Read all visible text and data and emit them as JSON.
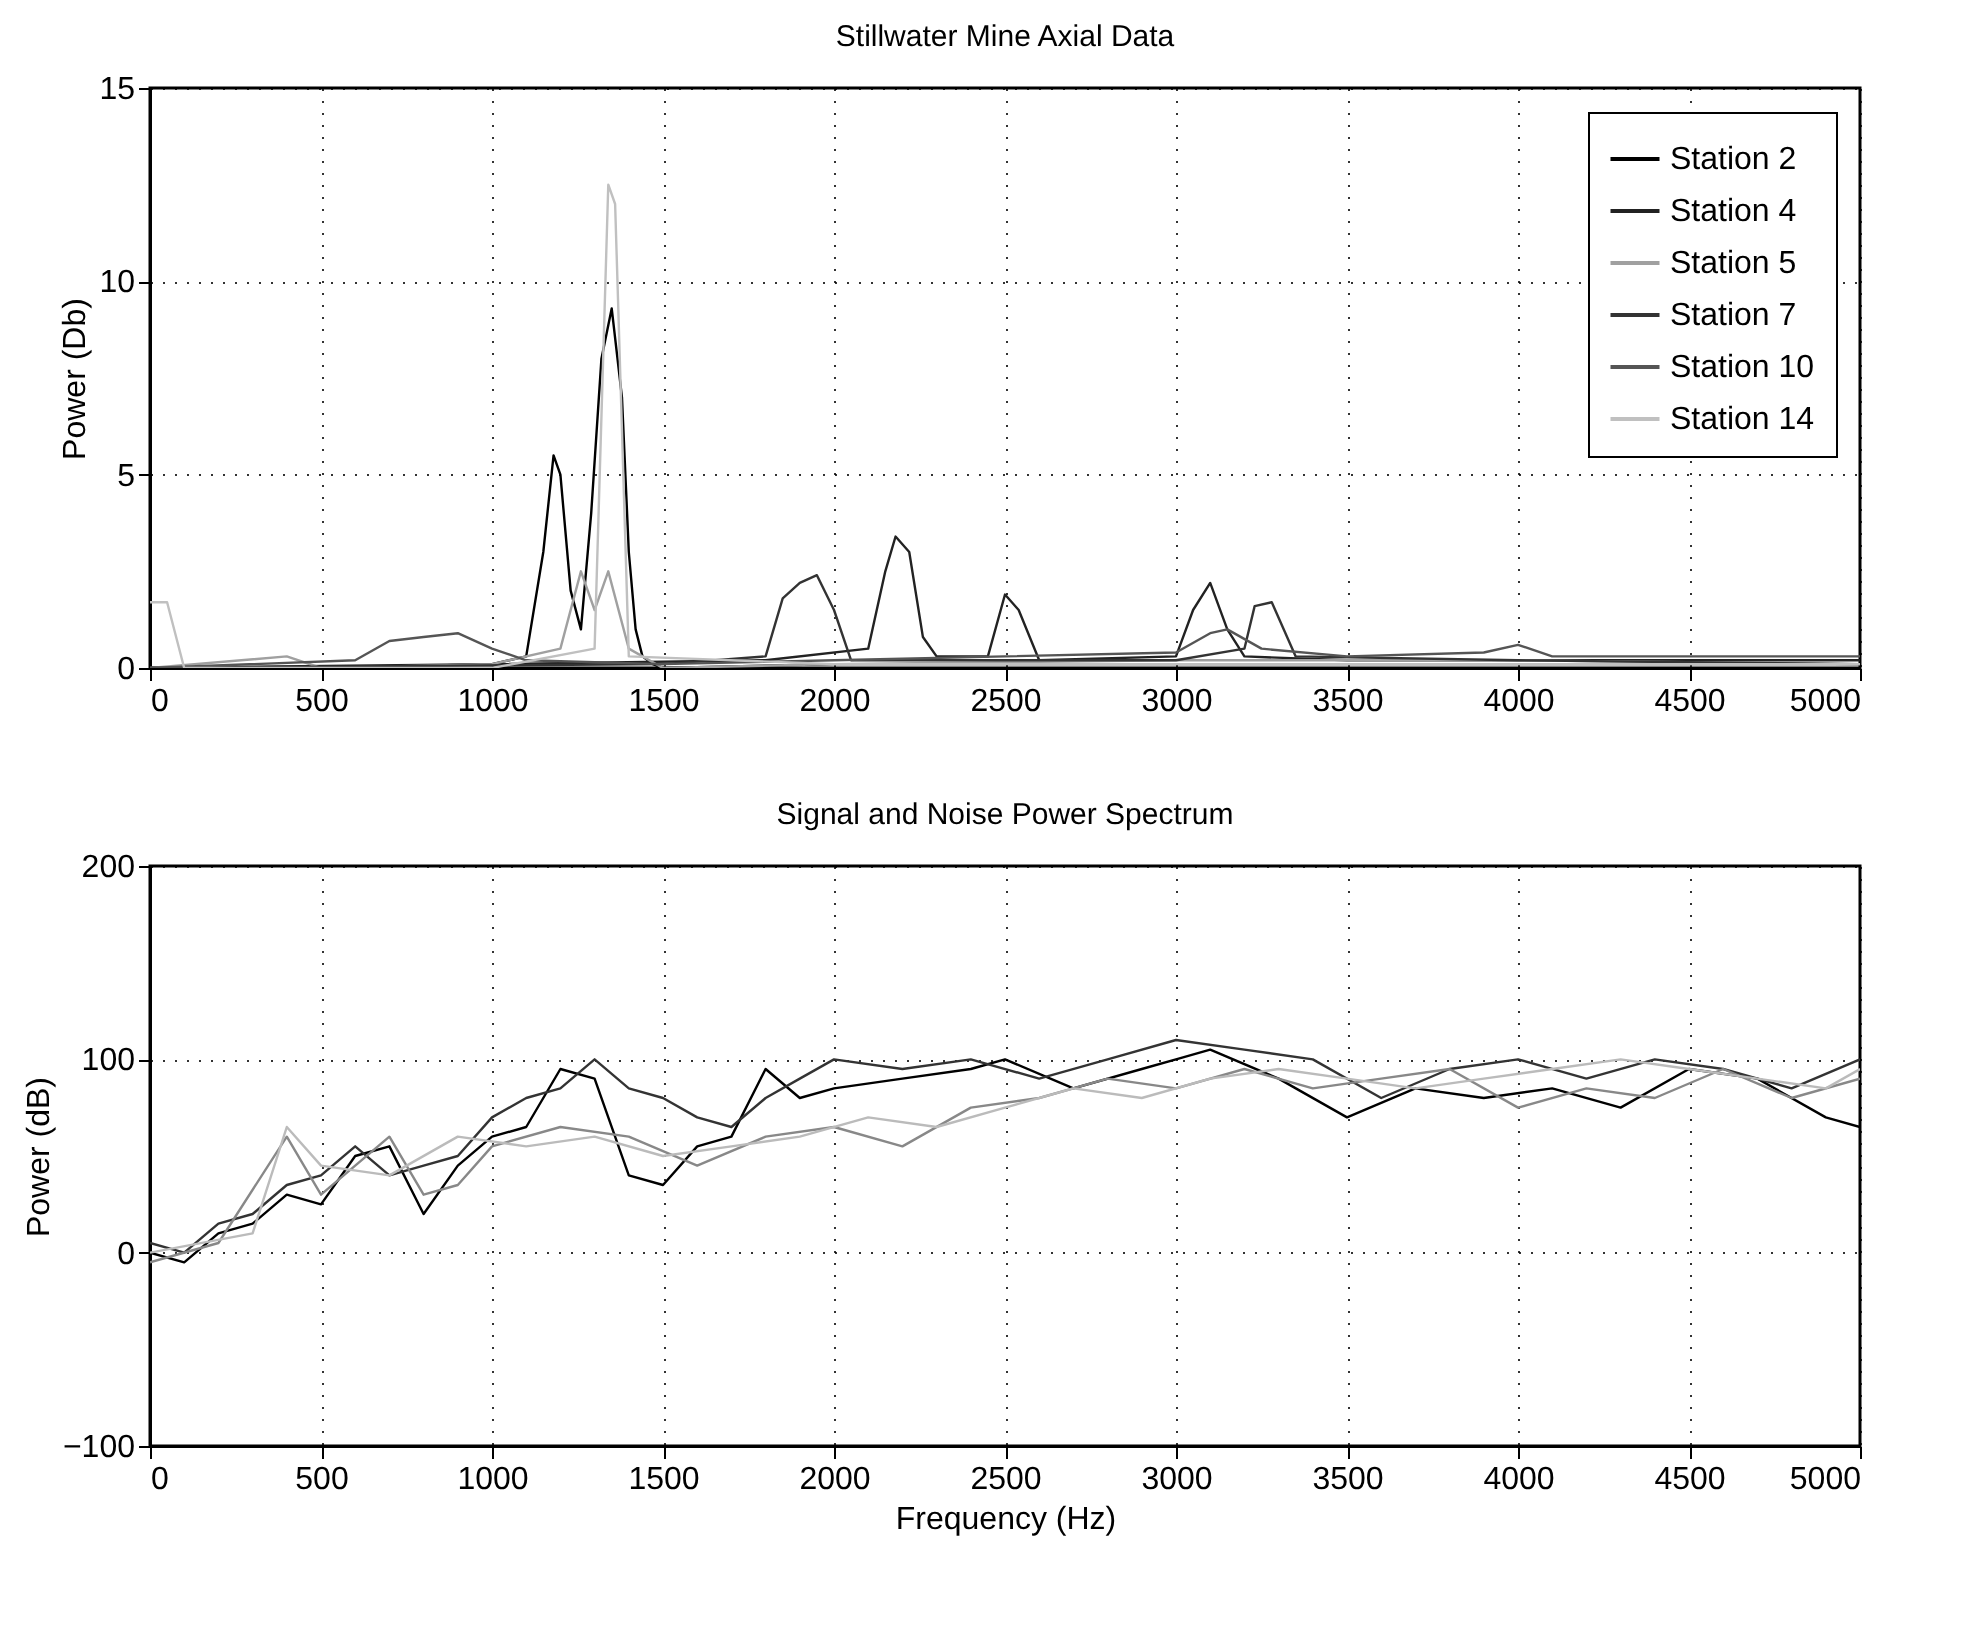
{
  "chart_data": [
    {
      "type": "line",
      "title": "Stillwater Mine Axial Data",
      "ylabel": "Power (Db)",
      "xlim": [
        0,
        5000
      ],
      "xticks": [
        0,
        500,
        1000,
        1500,
        2000,
        2500,
        3000,
        3500,
        4000,
        4500,
        5000
      ],
      "ylim": [
        0,
        15
      ],
      "yticks": [
        0,
        5,
        10,
        15
      ],
      "grid": true,
      "legend": "top right",
      "series": [
        {
          "name": "Station 2",
          "color": "#000000",
          "x": [
            0,
            500,
            1000,
            1100,
            1150,
            1180,
            1200,
            1230,
            1260,
            1290,
            1320,
            1350,
            1380,
            1400,
            1420,
            1440,
            1470,
            1500,
            2000,
            3000,
            4000,
            5000
          ],
          "values": [
            0,
            0,
            0.1,
            0.3,
            3,
            5.5,
            5,
            2,
            1,
            4,
            8,
            9.3,
            7,
            3,
            1,
            0.3,
            0.1,
            0,
            0.1,
            0.1,
            0.1,
            0.1
          ]
        },
        {
          "name": "Station 4",
          "color": "#222222",
          "x": [
            0,
            1000,
            1800,
            2100,
            2150,
            2180,
            2220,
            2260,
            2300,
            2450,
            2500,
            2540,
            2600,
            3000,
            3050,
            3100,
            3150,
            3200,
            3500,
            4000,
            5000
          ],
          "values": [
            0,
            0.1,
            0.2,
            0.5,
            2.5,
            3.4,
            3,
            0.8,
            0.3,
            0.3,
            1.9,
            1.5,
            0.2,
            0.3,
            1.5,
            2.2,
            1,
            0.3,
            0.2,
            0.2,
            0.2
          ]
        },
        {
          "name": "Station 5",
          "color": "#a0a0a0",
          "x": [
            0,
            400,
            500,
            1000,
            1200,
            1260,
            1300,
            1340,
            1400,
            1500,
            2000,
            3000,
            4000,
            5000
          ],
          "values": [
            0,
            0.3,
            0,
            0.1,
            0.5,
            2.5,
            1.5,
            2.5,
            0.5,
            0,
            0.1,
            0.2,
            0.2,
            0.1
          ]
        },
        {
          "name": "Station 7",
          "color": "#333333",
          "x": [
            0,
            1500,
            1800,
            1850,
            1900,
            1950,
            2000,
            2050,
            3000,
            3200,
            3230,
            3280,
            3350,
            4000,
            5000
          ],
          "values": [
            0,
            0.1,
            0.3,
            1.8,
            2.2,
            2.4,
            1.5,
            0.2,
            0.2,
            0.5,
            1.6,
            1.7,
            0.3,
            0.2,
            0.1
          ]
        },
        {
          "name": "Station 10",
          "color": "#555555",
          "x": [
            0,
            600,
            700,
            800,
            900,
            1000,
            1100,
            1500,
            2000,
            2500,
            3000,
            3100,
            3150,
            3250,
            3500,
            3900,
            4000,
            4100,
            4500,
            5000
          ],
          "values": [
            0,
            0.2,
            0.7,
            0.8,
            0.9,
            0.5,
            0.2,
            0.1,
            0.2,
            0.3,
            0.4,
            0.9,
            1,
            0.5,
            0.3,
            0.4,
            0.6,
            0.3,
            0.3,
            0.3
          ]
        },
        {
          "name": "Station 14",
          "color": "#c0c0c0",
          "x": [
            0,
            50,
            100,
            1000,
            1300,
            1340,
            1360,
            1400,
            2000,
            3000,
            4000,
            5000
          ],
          "values": [
            1.7,
            1.7,
            0,
            0,
            0.5,
            12.5,
            12,
            0.3,
            0.1,
            0.1,
            0.1,
            0.1
          ]
        }
      ]
    },
    {
      "type": "line",
      "title": "Signal and Noise Power Spectrum",
      "xlabel": "Frequency (Hz)",
      "ylabel": "Power (dB)",
      "xlim": [
        0,
        5000
      ],
      "xticks": [
        0,
        500,
        1000,
        1500,
        2000,
        2500,
        3000,
        3500,
        4000,
        4500,
        5000
      ],
      "ylim": [
        -100,
        200
      ],
      "yticks": [
        -100,
        0,
        100,
        200
      ],
      "grid": true,
      "series": [
        {
          "color": "#000000",
          "x": [
            0,
            100,
            200,
            300,
            400,
            500,
            600,
            700,
            800,
            900,
            1000,
            1100,
            1200,
            1300,
            1400,
            1500,
            1600,
            1700,
            1800,
            1900,
            2000,
            2200,
            2400,
            2500,
            2700,
            2900,
            3000,
            3100,
            3300,
            3500,
            3700,
            3900,
            4100,
            4300,
            4500,
            4700,
            4900,
            5000
          ],
          "values": [
            0,
            -5,
            10,
            15,
            30,
            25,
            50,
            55,
            20,
            45,
            60,
            65,
            95,
            90,
            40,
            35,
            55,
            60,
            95,
            80,
            85,
            90,
            95,
            100,
            85,
            95,
            100,
            105,
            90,
            70,
            85,
            80,
            85,
            75,
            95,
            90,
            70,
            65
          ]
        },
        {
          "color": "#333333",
          "x": [
            0,
            100,
            200,
            300,
            400,
            500,
            600,
            700,
            800,
            900,
            1000,
            1100,
            1200,
            1300,
            1400,
            1500,
            1600,
            1700,
            1800,
            1900,
            2000,
            2200,
            2400,
            2600,
            2800,
            3000,
            3200,
            3400,
            3600,
            3800,
            4000,
            4200,
            4400,
            4600,
            4800,
            5000
          ],
          "values": [
            5,
            0,
            15,
            20,
            35,
            40,
            55,
            40,
            45,
            50,
            70,
            80,
            85,
            100,
            85,
            80,
            70,
            65,
            80,
            90,
            100,
            95,
            100,
            90,
            100,
            110,
            105,
            100,
            80,
            95,
            100,
            90,
            100,
            95,
            85,
            100
          ]
        },
        {
          "color": "#888888",
          "x": [
            0,
            200,
            400,
            500,
            600,
            700,
            800,
            900,
            1000,
            1200,
            1400,
            1600,
            1800,
            2000,
            2200,
            2400,
            2600,
            2800,
            3000,
            3200,
            3400,
            3600,
            3800,
            4000,
            4200,
            4400,
            4600,
            4800,
            5000
          ],
          "values": [
            -5,
            5,
            60,
            30,
            45,
            60,
            30,
            35,
            55,
            65,
            60,
            45,
            60,
            65,
            55,
            75,
            80,
            90,
            85,
            95,
            85,
            90,
            95,
            75,
            85,
            80,
            95,
            80,
            90
          ]
        },
        {
          "color": "#bbbbbb",
          "x": [
            0,
            300,
            400,
            500,
            700,
            900,
            1100,
            1300,
            1500,
            1700,
            1900,
            2100,
            2300,
            2500,
            2700,
            2900,
            3100,
            3300,
            3500,
            3700,
            3900,
            4100,
            4300,
            4500,
            4700,
            4900,
            5000
          ],
          "values": [
            0,
            10,
            65,
            45,
            40,
            60,
            55,
            60,
            50,
            55,
            60,
            70,
            65,
            75,
            85,
            80,
            90,
            95,
            90,
            85,
            90,
            95,
            100,
            95,
            90,
            85,
            95
          ]
        }
      ]
    }
  ]
}
